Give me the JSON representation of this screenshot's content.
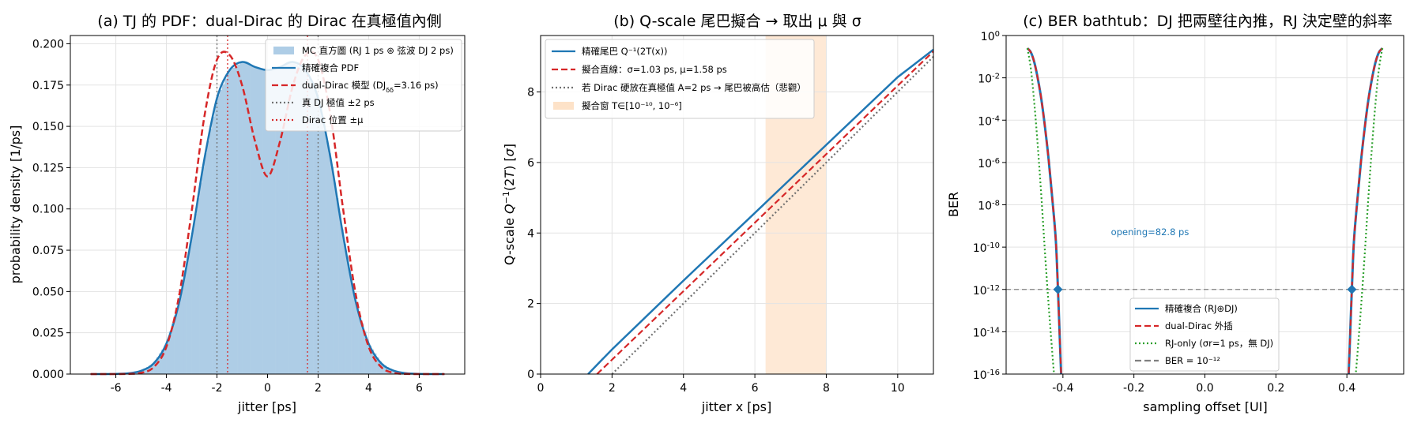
{
  "chart_data": [
    {
      "type": "line",
      "title": "(a) TJ 的 PDF：dual-Dirac 的 Dirac 在真極值內側",
      "xlabel": "jitter [ps]",
      "ylabel": "probability density [1/ps]",
      "xlim": [
        -7.8,
        7.8
      ],
      "ylim": [
        0,
        0.205
      ],
      "xticks": [
        -6,
        -4,
        -2,
        0,
        2,
        4,
        6
      ],
      "xtick_labels": [
        "-6",
        "-4",
        "-2",
        "0",
        "2",
        "4",
        "6"
      ],
      "yticks": [
        0,
        0.025,
        0.05,
        0.075,
        0.1,
        0.125,
        0.15,
        0.175,
        0.2
      ],
      "ytick_labels": [
        "0.000",
        "0.025",
        "0.050",
        "0.075",
        "0.100",
        "0.125",
        "0.150",
        "0.175",
        "0.200"
      ],
      "grid": true,
      "legend_position": "top-right",
      "legend": [
        {
          "label": "MC 直方圖 (RJ 1 ps ⊛ 弦波 DJ 2 ps)",
          "style": "patch",
          "color": "#aecde6"
        },
        {
          "label": "精確複合 PDF",
          "style": "solid",
          "color": "#1f77b4"
        },
        {
          "label": "dual-Dirac 模型 (DJδδ=3.16 ps)",
          "style": "dashed",
          "color": "#d62728"
        },
        {
          "label": "真 DJ 極值 ±2 ps",
          "style": "dotted",
          "color": "#707070"
        },
        {
          "label": "Dirac 位置 ±μ",
          "style": "dotted",
          "color": "#d62728"
        }
      ],
      "params": {
        "rj_sigma_ps": 1.0,
        "dj_peak_ps": 2.0,
        "dirac_mu_ps": 1.58,
        "dirac_sigma_ps": 1.03
      },
      "vlines_true": [
        -2,
        2
      ],
      "vlines_dirac": [
        -1.58,
        1.58
      ],
      "x": [
        -7,
        -6.5,
        -6,
        -5.5,
        -5,
        -4.5,
        -4,
        -3.5,
        -3,
        -2.5,
        -2,
        -1.5,
        -1,
        -0.5,
        0,
        0.5,
        1,
        1.5,
        2,
        2.5,
        3,
        3.5,
        4,
        4.5,
        5,
        5.5,
        6,
        6.5,
        7
      ],
      "series": [
        {
          "name": "精確複合 PDF",
          "color": "#1f77b4",
          "dash": "solid",
          "values": [
            0.0,
            0.0,
            0.0001,
            0.0005,
            0.002,
            0.0065,
            0.0185,
            0.043,
            0.083,
            0.13,
            0.167,
            0.184,
            0.189,
            0.186,
            0.184,
            0.186,
            0.189,
            0.184,
            0.167,
            0.13,
            0.083,
            0.043,
            0.0185,
            0.0065,
            0.002,
            0.0005,
            0.0001,
            0.0,
            0.0
          ]
        },
        {
          "name": "dual-Dirac 模型",
          "color": "#d62728",
          "dash": "dashed",
          "values": [
            0.0,
            0.0,
            0.0,
            0.0001,
            0.0007,
            0.0042,
            0.0166,
            0.0472,
            0.0986,
            0.1557,
            0.1904,
            0.1932,
            0.1745,
            0.1413,
            0.1197,
            0.1413,
            0.1745,
            0.1932,
            0.1904,
            0.1557,
            0.0986,
            0.0472,
            0.0166,
            0.0042,
            0.0007,
            0.0001,
            0.0,
            0.0,
            0.0
          ]
        }
      ]
    },
    {
      "type": "line",
      "title": "(b) Q-scale 尾巴擬合 → 取出 μ 與 σ",
      "xlabel": "jitter x [ps]",
      "ylabel": "Q-scale Q⁻¹(2T) [σ]",
      "xlim": [
        0,
        11
      ],
      "ylim": [
        0,
        9.6
      ],
      "xticks": [
        0,
        2,
        4,
        6,
        8,
        10
      ],
      "xtick_labels": [
        "0",
        "2",
        "4",
        "6",
        "8",
        "10"
      ],
      "yticks": [
        0,
        2,
        4,
        6,
        8
      ],
      "ytick_labels": [
        "0",
        "2",
        "4",
        "6",
        "8"
      ],
      "grid": true,
      "legend_position": "top-left",
      "shade": {
        "x0": 6.3,
        "x1": 8.0,
        "color": "#fde2c8"
      },
      "legend": [
        {
          "label": "精確尾巴 Q⁻¹(2T(x))",
          "style": "solid",
          "color": "#1f77b4"
        },
        {
          "label": "擬合直線：σ=1.03 ps, μ=1.58 ps",
          "style": "dashed",
          "color": "#d62728"
        },
        {
          "label": "若 Dirac 硬放在真極值 A=2 ps → 尾巴被高估（悲觀）",
          "style": "dotted",
          "color": "#707070"
        },
        {
          "label": "擬合窗 T∈[10⁻¹⁰, 10⁻⁶]",
          "style": "patch",
          "color": "#fde2c8"
        }
      ],
      "series": [
        {
          "name": "精確尾巴",
          "color": "#1f77b4",
          "dash": "solid",
          "x": [
            1.33,
            2,
            4,
            6,
            8,
            10,
            11
          ],
          "values": [
            0,
            0.7,
            2.65,
            4.57,
            6.5,
            8.42,
            9.2
          ]
        },
        {
          "name": "擬合直線",
          "color": "#d62728",
          "dash": "dashed",
          "x": [
            1.58,
            11
          ],
          "values": [
            0,
            9.15
          ]
        },
        {
          "name": "Dirac 在真極值",
          "color": "#707070",
          "dash": "dotted",
          "x": [
            2.0,
            11
          ],
          "values": [
            0,
            9.0
          ]
        }
      ]
    },
    {
      "type": "line",
      "title": "(c) BER bathtub：DJ 把兩壁往內推，RJ 決定壁的斜率",
      "xlabel": "sampling offset [UI]",
      "ylabel": "BER",
      "yscale": "log",
      "xlim": [
        -0.56,
        0.56
      ],
      "ylim_log10": [
        -16,
        0
      ],
      "xticks": [
        -0.4,
        -0.2,
        0.0,
        0.2,
        0.4
      ],
      "xtick_labels": [
        "-0.4",
        "-0.2",
        "0.0",
        "0.2",
        "0.4"
      ],
      "ytick_exponents": [
        0,
        -2,
        -4,
        -6,
        -8,
        -10,
        -12,
        -14,
        -16
      ],
      "grid": true,
      "legend_position": "lower-center",
      "annotation": "opening=82.8 ps",
      "ber_target_log10": -12,
      "crossings": [
        -0.414,
        0.414
      ],
      "legend": [
        {
          "label": "精確複合 (RJ⊛DJ)",
          "style": "solid",
          "color": "#1f77b4"
        },
        {
          "label": "dual-Dirac 外插",
          "style": "dashed",
          "color": "#d62728"
        },
        {
          "label": "RJ-only (σr=1 ps，無 DJ)",
          "style": "dotted",
          "color": "#2ca02c"
        },
        {
          "label": "BER = 10⁻¹²",
          "style": "dashed",
          "color": "#808080"
        }
      ],
      "series": [
        {
          "name": "精確複合",
          "color": "#1f77b4",
          "dash": "solid",
          "log10_x": [
            -0.5,
            -0.49,
            -0.48,
            -0.47,
            -0.46,
            -0.45,
            -0.44,
            -0.43,
            -0.42,
            -0.414,
            -0.41,
            -0.405
          ],
          "log10_values": [
            -0.6,
            -0.8,
            -1.3,
            -2.1,
            -3.1,
            -4.4,
            -5.9,
            -7.7,
            -9.7,
            -12,
            -13.8,
            -16
          ]
        },
        {
          "name": "dual-Dirac 外插",
          "color": "#d62728",
          "dash": "dashed",
          "log10_x": [
            -0.5,
            -0.49,
            -0.48,
            -0.47,
            -0.46,
            -0.45,
            -0.44,
            -0.43,
            -0.42,
            -0.414,
            -0.41,
            -0.405
          ],
          "log10_values": [
            -0.6,
            -0.8,
            -1.3,
            -2.1,
            -3.1,
            -4.4,
            -5.9,
            -7.7,
            -9.7,
            -12,
            -13.8,
            -16
          ]
        },
        {
          "name": "RJ-only",
          "color": "#2ca02c",
          "dash": "dotted",
          "log10_x": [
            -0.5,
            -0.49,
            -0.48,
            -0.47,
            -0.46,
            -0.45,
            -0.44,
            -0.43,
            -0.425,
            -0.42
          ],
          "log10_values": [
            -0.6,
            -1.6,
            -3.3,
            -5.4,
            -7.8,
            -10.4,
            -12.8,
            -15.0,
            -16.0,
            -17.0
          ]
        }
      ]
    }
  ]
}
